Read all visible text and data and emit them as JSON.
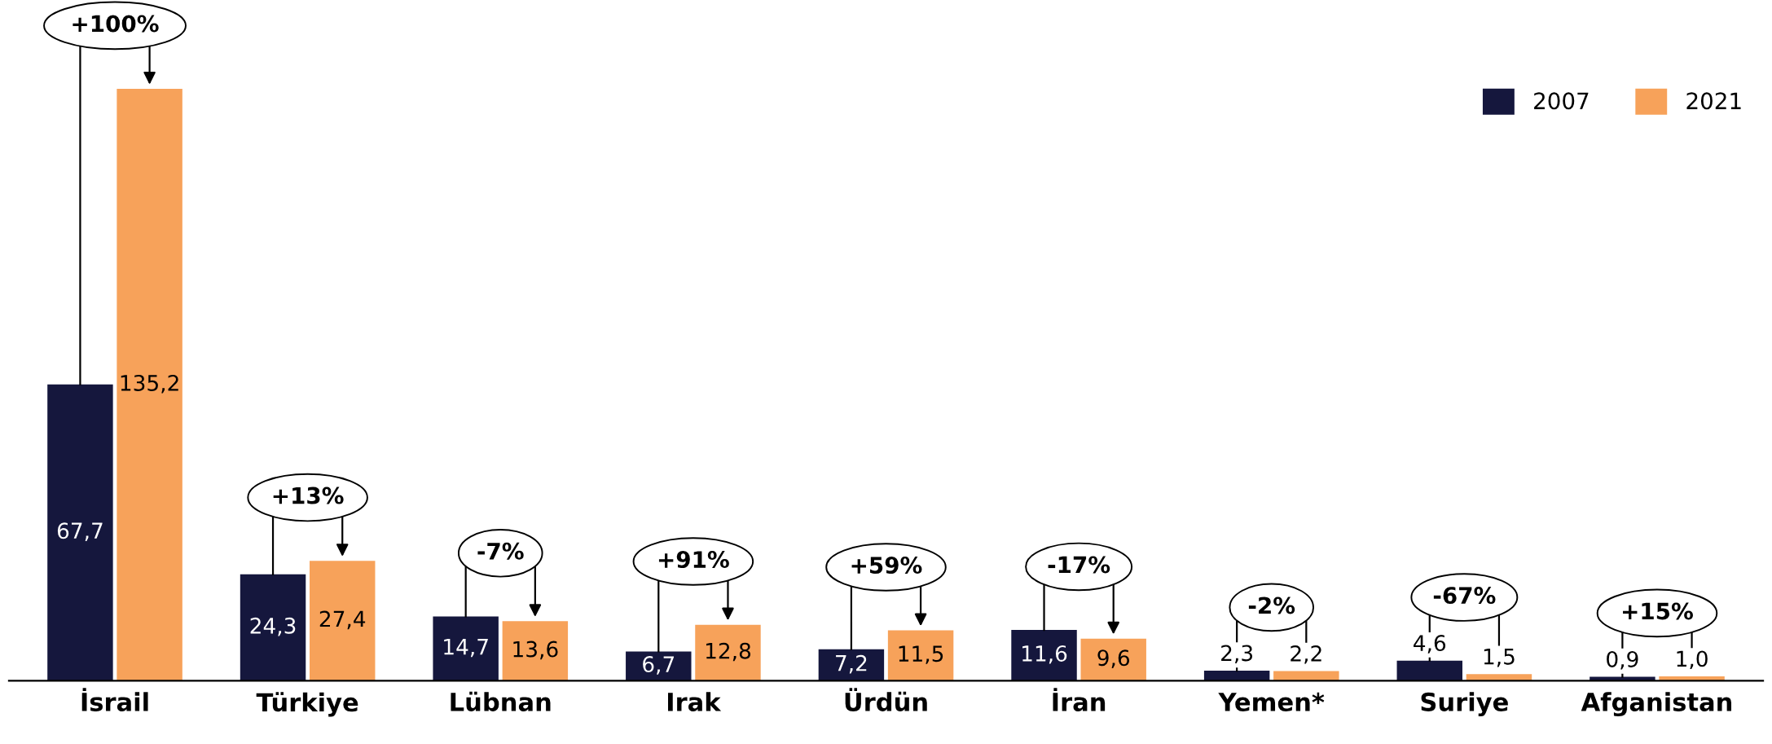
{
  "chart_data": {
    "type": "bar",
    "categories": [
      "İsrail",
      "Türkiye",
      "Lübnan",
      "Irak",
      "Ürdün",
      "İran",
      "Yemen*",
      "Suriye",
      "Afganistan"
    ],
    "series": [
      {
        "name": "2007",
        "color": "#15173d",
        "values": [
          67.7,
          24.3,
          14.7,
          6.7,
          7.2,
          11.6,
          2.3,
          4.6,
          0.9
        ],
        "value_labels": [
          "67,7",
          "24,3",
          "14,7",
          "6,7",
          "7,2",
          "11,6",
          "2,3",
          "4,6",
          "0,9"
        ]
      },
      {
        "name": "2021",
        "color": "#f7a25a",
        "values": [
          135.2,
          27.4,
          13.6,
          12.8,
          11.5,
          9.6,
          2.2,
          1.5,
          1.0
        ],
        "value_labels": [
          "135,2",
          "27,4",
          "13,6",
          "12,8",
          "11,5",
          "9,6",
          "2,2",
          "1,5",
          "1,0"
        ]
      }
    ],
    "annotations": [
      {
        "text": "+100%",
        "x": "İsrail",
        "y": 135.2
      },
      {
        "text": "+13%",
        "x": "Türkiye",
        "y": 27.4
      },
      {
        "text": "-7%",
        "x": "Lübnan",
        "y": 14.7
      },
      {
        "text": "+91%",
        "x": "Irak",
        "y": 12.8
      },
      {
        "text": "+59%",
        "x": "Ürdün",
        "y": 11.5
      },
      {
        "text": "-17%",
        "x": "İran",
        "y": 11.6
      },
      {
        "text": "-2%",
        "x": "Yemen*",
        "y": 2.3
      },
      {
        "text": "-67%",
        "x": "Suriye",
        "y": 4.6
      },
      {
        "text": "+15%",
        "x": "Afganistan",
        "y": 1.0
      }
    ],
    "tick_labels": "x",
    "legend": "top right",
    "grid": false
  }
}
